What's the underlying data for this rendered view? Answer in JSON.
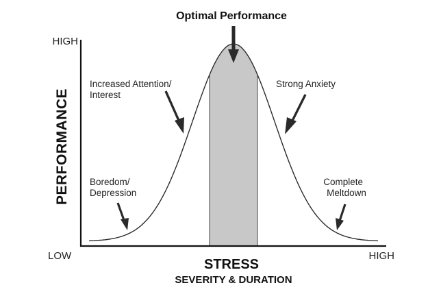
{
  "title": "Optimal Performance",
  "y_axis": {
    "label": "PERFORMANCE",
    "high_label": "HIGH",
    "low_label": "LOW"
  },
  "x_axis": {
    "label": "STRESS",
    "sublabel": "SEVERITY & DURATION",
    "high_label": "HIGH"
  },
  "annotations": {
    "boredom": [
      "Boredom/",
      "Depression"
    ],
    "attention": [
      "Increased Attention/",
      "Interest"
    ],
    "anxiety": [
      "Strong Anxiety"
    ],
    "meltdown": [
      "Complete",
      "Meltdown"
    ]
  },
  "colors": {
    "curve": "#2b2b2b",
    "optimal_zone": "#c8c8c8",
    "axis": "#111111",
    "arrow": "#2a2a2a"
  }
}
